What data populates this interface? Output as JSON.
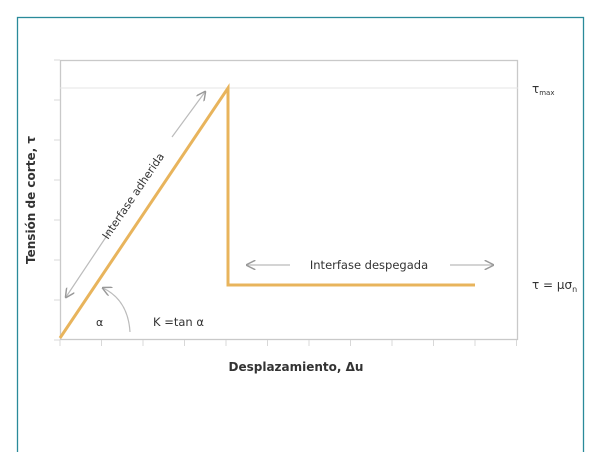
{
  "diagram": {
    "y_axis_label": "Tensión de corte, τ",
    "x_axis_label": "Desplazamiento, Δu",
    "bonded_label": "Interfase adherida",
    "debonded_label": "Interfase despegada",
    "stiffness_label": "K =tan α",
    "angle_label": "α",
    "tau_max": {
      "base": "τ",
      "sub": "max"
    },
    "tau_residual": {
      "base": "τ = μσ",
      "sub": "n"
    }
  }
}
